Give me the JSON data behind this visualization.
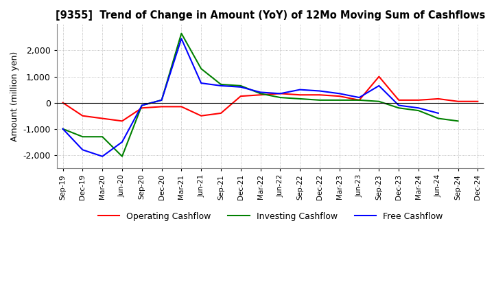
{
  "title": "[9355]  Trend of Change in Amount (YoY) of 12Mo Moving Sum of Cashflows",
  "ylabel": "Amount (million yen)",
  "x_labels": [
    "Sep-19",
    "Dec-19",
    "Mar-20",
    "Jun-20",
    "Sep-20",
    "Dec-20",
    "Mar-21",
    "Jun-21",
    "Sep-21",
    "Dec-21",
    "Mar-22",
    "Jun-22",
    "Sep-22",
    "Dec-22",
    "Mar-23",
    "Jun-23",
    "Sep-23",
    "Dec-23",
    "Mar-24",
    "Jun-24",
    "Sep-24",
    "Dec-24"
  ],
  "operating": [
    0,
    -500,
    -600,
    -700,
    -200,
    -150,
    -150,
    -500,
    -400,
    250,
    300,
    350,
    300,
    300,
    250,
    100,
    1000,
    100,
    100,
    150,
    50,
    50
  ],
  "investing": [
    -1000,
    -1300,
    -1300,
    -2050,
    -100,
    100,
    2650,
    1300,
    700,
    650,
    350,
    200,
    150,
    100,
    100,
    100,
    50,
    -200,
    -300,
    -600,
    -700,
    null
  ],
  "free": [
    -1000,
    -1800,
    -2050,
    -1500,
    -100,
    100,
    2450,
    750,
    650,
    600,
    400,
    350,
    500,
    450,
    350,
    200,
    650,
    -100,
    -200,
    -400,
    null,
    null
  ],
  "operating_color": "#ff0000",
  "investing_color": "#008000",
  "free_color": "#0000ff",
  "ylim": [
    -2500,
    3000
  ],
  "yticks": [
    -2000,
    -1000,
    0,
    1000,
    2000
  ],
  "grid_color": "#aaaaaa",
  "background_color": "#ffffff",
  "legend_labels": [
    "Operating Cashflow",
    "Investing Cashflow",
    "Free Cashflow"
  ]
}
